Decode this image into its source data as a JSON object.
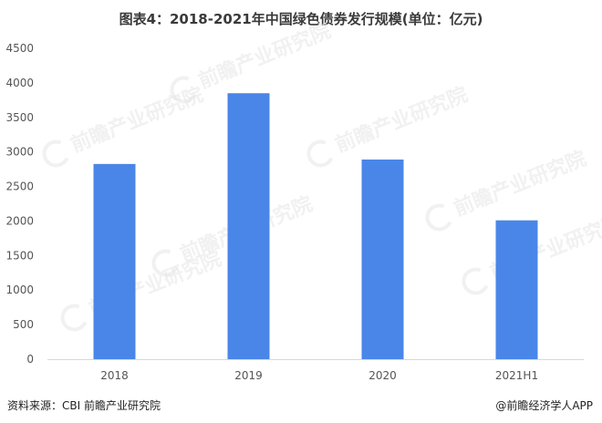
{
  "title": "图表4：2018-2021年中国绿色债券发行规模(单位：亿元)",
  "source": "资料来源：CBI 前瞻产业研究院",
  "credit": "@前瞻经济学人APP",
  "watermark": "前瞻产业研究院",
  "colors": {
    "bar": "#4a86e8",
    "axis": "#d9d9d9",
    "tick_text": "#555555"
  },
  "chart_data": {
    "type": "bar",
    "categories": [
      "2018",
      "2019",
      "2020",
      "2021H1"
    ],
    "values": [
      2826,
      3850,
      2890,
      2010
    ],
    "ylim": [
      0,
      4500
    ],
    "yticks": [
      0,
      500,
      1000,
      1500,
      2000,
      2500,
      3000,
      3500,
      4000,
      4500
    ],
    "grid": false,
    "title": "图表4：2018-2021年中国绿色债券发行规模(单位：亿元)",
    "xlabel": "",
    "ylabel": ""
  }
}
